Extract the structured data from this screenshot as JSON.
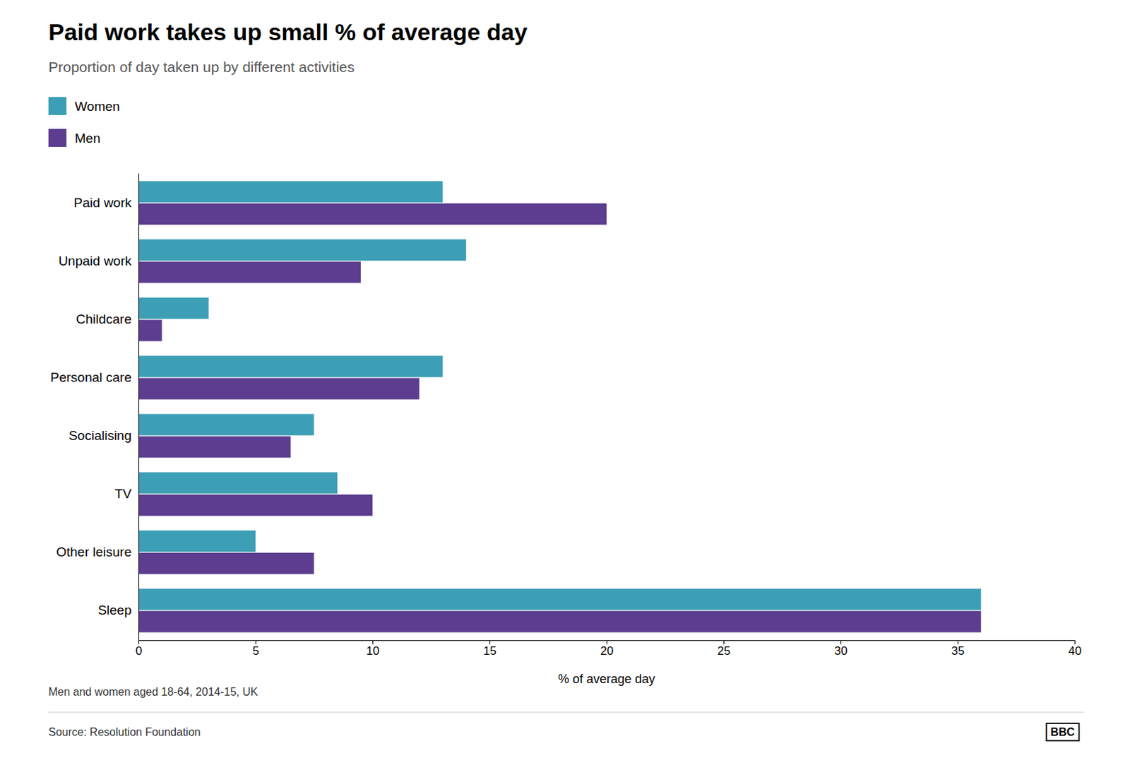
{
  "chart_data": {
    "type": "bar",
    "orientation": "horizontal",
    "title": "Paid work takes up small % of average day",
    "subtitle": "Proportion of day taken up by different activities",
    "footnote": "Men and women aged 18-64, 2014-15, UK",
    "source": "Source: Resolution Foundation",
    "annotations": [
      "BBC"
    ],
    "categories": [
      "Paid work",
      "Unpaid work",
      "Childcare",
      "Personal care",
      "Socialising",
      "TV",
      "Other leisure",
      "Sleep"
    ],
    "series": [
      {
        "name": "Women",
        "color": "#3d9fb5",
        "values": [
          13,
          14,
          3,
          13,
          7.5,
          8.5,
          5,
          36
        ]
      },
      {
        "name": "Men",
        "color": "#5c3d8f",
        "values": [
          20,
          9.5,
          1,
          12,
          6.5,
          10,
          7.5,
          36
        ]
      }
    ],
    "xlabel": "% of average day",
    "xlim": [
      0,
      40
    ],
    "xticks": [
      0,
      5,
      10,
      15,
      20,
      25,
      30,
      35,
      40
    ],
    "grid": false,
    "legend": "top"
  }
}
